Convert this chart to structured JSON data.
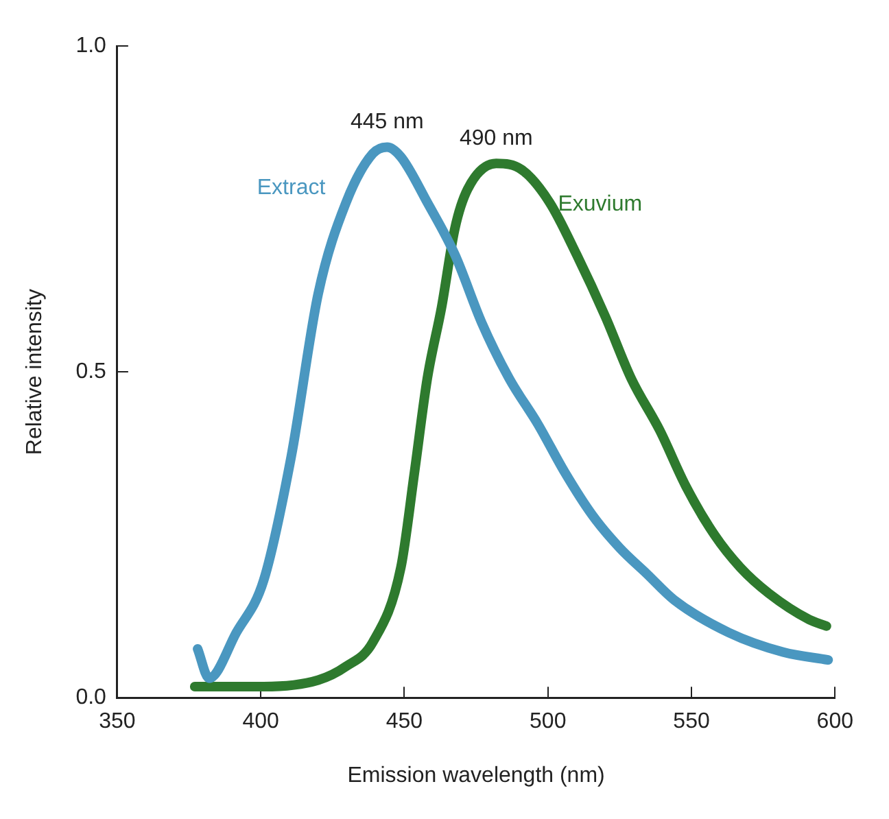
{
  "chart_data": {
    "type": "line",
    "xlabel": "Emission wavelength (nm)",
    "ylabel": "Relative intensity",
    "xlim": [
      350,
      600
    ],
    "xticks": [
      350,
      400,
      450,
      500,
      550,
      600
    ],
    "ylim": [
      0,
      1
    ],
    "yticks": [
      {
        "value": 0,
        "label": "0.0"
      },
      {
        "value": 0.5,
        "label": "0.5"
      },
      {
        "value": 1,
        "label": "1.0"
      }
    ],
    "grid": false,
    "legend": false,
    "marker": "none",
    "line_style": "solid",
    "annotations": [
      "445 nm",
      "490 nm"
    ],
    "series": [
      {
        "name": "Extract",
        "color": "#4a97c0",
        "x": [
          378,
          382,
          391.5,
          401,
          410.6,
          420,
          429.7,
          439,
          444,
          448.8,
          458,
          467.6,
          477,
          486.5,
          496.5,
          506,
          515.5,
          525,
          534.5,
          544,
          563,
          582,
          597.6
        ],
        "values": [
          0.075,
          0.03,
          0.1,
          0.18,
          0.37,
          0.62,
          0.76,
          0.835,
          0.845,
          0.83,
          0.76,
          0.68,
          0.575,
          0.49,
          0.42,
          0.345,
          0.28,
          0.23,
          0.19,
          0.15,
          0.1,
          0.07,
          0.058
        ]
      },
      {
        "name": "Exuvium",
        "color": "#2e7a2e",
        "x": [
          377,
          401,
          420,
          429.7,
          439,
          448.8,
          453.5,
          458,
          463,
          467.6,
          472,
          482,
          491,
          500.6,
          510,
          520,
          529,
          539,
          548,
          558,
          567,
          577,
          591,
          597
        ],
        "values": [
          0.017,
          0.017,
          0.027,
          0.048,
          0.085,
          0.2,
          0.345,
          0.49,
          0.6,
          0.72,
          0.78,
          0.82,
          0.81,
          0.76,
          0.68,
          0.585,
          0.49,
          0.41,
          0.325,
          0.25,
          0.2,
          0.16,
          0.12,
          0.11
        ]
      }
    ]
  }
}
